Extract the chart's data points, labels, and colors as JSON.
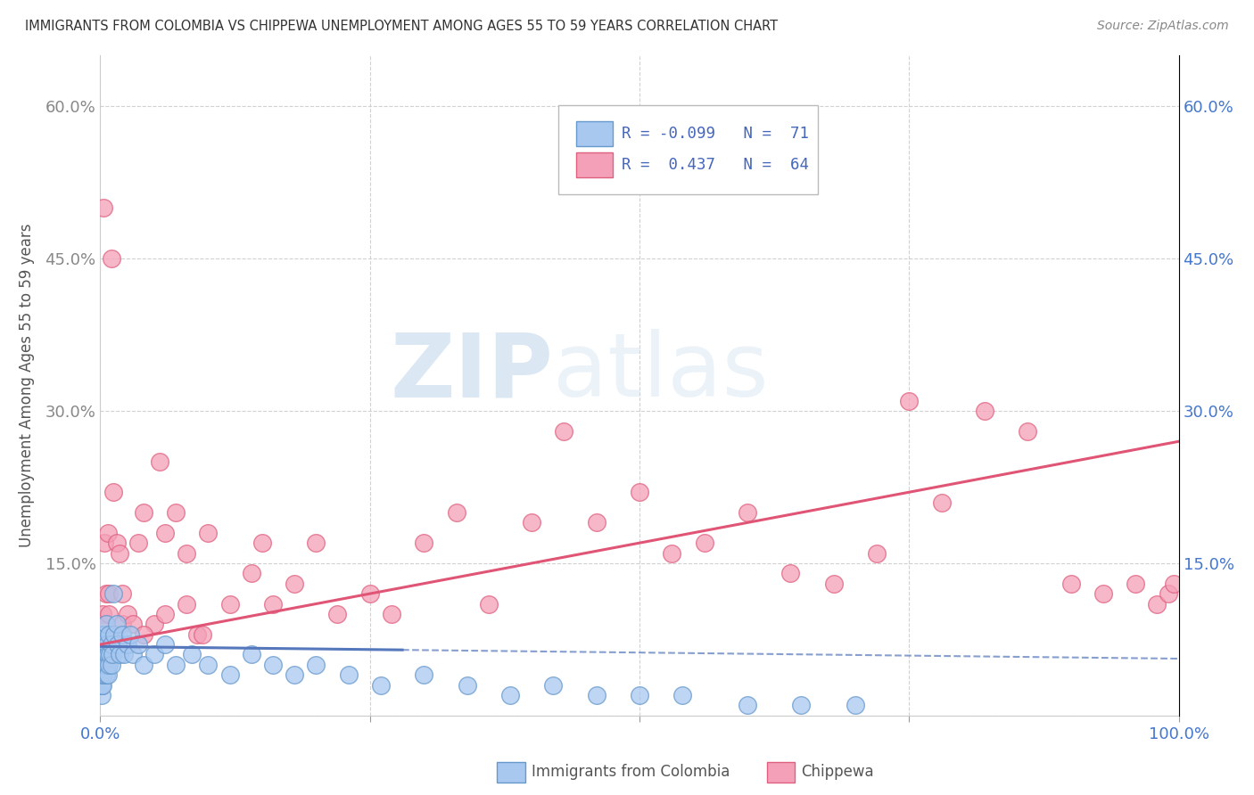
{
  "title": "IMMIGRANTS FROM COLOMBIA VS CHIPPEWA UNEMPLOYMENT AMONG AGES 55 TO 59 YEARS CORRELATION CHART",
  "source": "Source: ZipAtlas.com",
  "ylabel": "Unemployment Among Ages 55 to 59 years",
  "xlim": [
    0,
    1.0
  ],
  "ylim": [
    0,
    0.65
  ],
  "xticks": [
    0.0,
    0.25,
    0.5,
    0.75,
    1.0
  ],
  "xticklabels": [
    "0.0%",
    "",
    "",
    "",
    "100.0%"
  ],
  "ytick_vals": [
    0.0,
    0.15,
    0.3,
    0.45,
    0.6
  ],
  "yticklabels_left": [
    "",
    "15.0%",
    "30.0%",
    "45.0%",
    "60.0%"
  ],
  "yticklabels_right": [
    "",
    "15.0%",
    "30.0%",
    "45.0%",
    "60.0%"
  ],
  "color_colombia": "#a8c8f0",
  "color_chippewa": "#f4a0b8",
  "edge_colombia": "#6699cc",
  "edge_chippewa": "#e06080",
  "line_color_colombia": "#5577bb",
  "line_color_chippewa": "#e05575",
  "watermark_zip": "ZIP",
  "watermark_atlas": "atlas",
  "colombia_x": [
    0.001,
    0.001,
    0.001,
    0.001,
    0.001,
    0.001,
    0.001,
    0.001,
    0.001,
    0.001,
    0.002,
    0.002,
    0.002,
    0.002,
    0.002,
    0.002,
    0.002,
    0.003,
    0.003,
    0.003,
    0.003,
    0.004,
    0.004,
    0.004,
    0.005,
    0.005,
    0.005,
    0.006,
    0.006,
    0.007,
    0.007,
    0.008,
    0.008,
    0.009,
    0.01,
    0.01,
    0.011,
    0.012,
    0.013,
    0.015,
    0.016,
    0.018,
    0.02,
    0.022,
    0.025,
    0.028,
    0.03,
    0.035,
    0.04,
    0.05,
    0.06,
    0.07,
    0.085,
    0.1,
    0.12,
    0.14,
    0.16,
    0.18,
    0.2,
    0.23,
    0.26,
    0.3,
    0.34,
    0.38,
    0.42,
    0.46,
    0.5,
    0.54,
    0.6,
    0.65,
    0.7
  ],
  "colombia_y": [
    0.02,
    0.03,
    0.04,
    0.05,
    0.06,
    0.07,
    0.03,
    0.04,
    0.05,
    0.06,
    0.03,
    0.05,
    0.06,
    0.07,
    0.08,
    0.04,
    0.05,
    0.04,
    0.06,
    0.07,
    0.08,
    0.05,
    0.07,
    0.08,
    0.04,
    0.06,
    0.09,
    0.05,
    0.07,
    0.04,
    0.06,
    0.05,
    0.08,
    0.06,
    0.05,
    0.07,
    0.06,
    0.12,
    0.08,
    0.09,
    0.07,
    0.06,
    0.08,
    0.06,
    0.07,
    0.08,
    0.06,
    0.07,
    0.05,
    0.06,
    0.07,
    0.05,
    0.06,
    0.05,
    0.04,
    0.06,
    0.05,
    0.04,
    0.05,
    0.04,
    0.03,
    0.04,
    0.03,
    0.02,
    0.03,
    0.02,
    0.02,
    0.02,
    0.01,
    0.01,
    0.01
  ],
  "chippewa_x": [
    0.001,
    0.002,
    0.003,
    0.004,
    0.005,
    0.005,
    0.006,
    0.007,
    0.008,
    0.008,
    0.01,
    0.012,
    0.012,
    0.015,
    0.018,
    0.02,
    0.02,
    0.025,
    0.03,
    0.035,
    0.04,
    0.05,
    0.055,
    0.06,
    0.07,
    0.08,
    0.09,
    0.1,
    0.12,
    0.14,
    0.15,
    0.16,
    0.18,
    0.2,
    0.22,
    0.25,
    0.27,
    0.3,
    0.33,
    0.36,
    0.4,
    0.43,
    0.46,
    0.5,
    0.53,
    0.56,
    0.6,
    0.64,
    0.68,
    0.72,
    0.75,
    0.78,
    0.82,
    0.86,
    0.9,
    0.93,
    0.96,
    0.98,
    0.99,
    0.995,
    0.04,
    0.06,
    0.08,
    0.095
  ],
  "chippewa_y": [
    0.08,
    0.1,
    0.5,
    0.17,
    0.09,
    0.12,
    0.08,
    0.18,
    0.1,
    0.12,
    0.45,
    0.08,
    0.22,
    0.17,
    0.16,
    0.09,
    0.12,
    0.1,
    0.09,
    0.17,
    0.2,
    0.09,
    0.25,
    0.18,
    0.2,
    0.16,
    0.08,
    0.18,
    0.11,
    0.14,
    0.17,
    0.11,
    0.13,
    0.17,
    0.1,
    0.12,
    0.1,
    0.17,
    0.2,
    0.11,
    0.19,
    0.28,
    0.19,
    0.22,
    0.16,
    0.17,
    0.2,
    0.14,
    0.13,
    0.16,
    0.31,
    0.21,
    0.3,
    0.28,
    0.13,
    0.12,
    0.13,
    0.11,
    0.12,
    0.13,
    0.08,
    0.1,
    0.11,
    0.08
  ]
}
